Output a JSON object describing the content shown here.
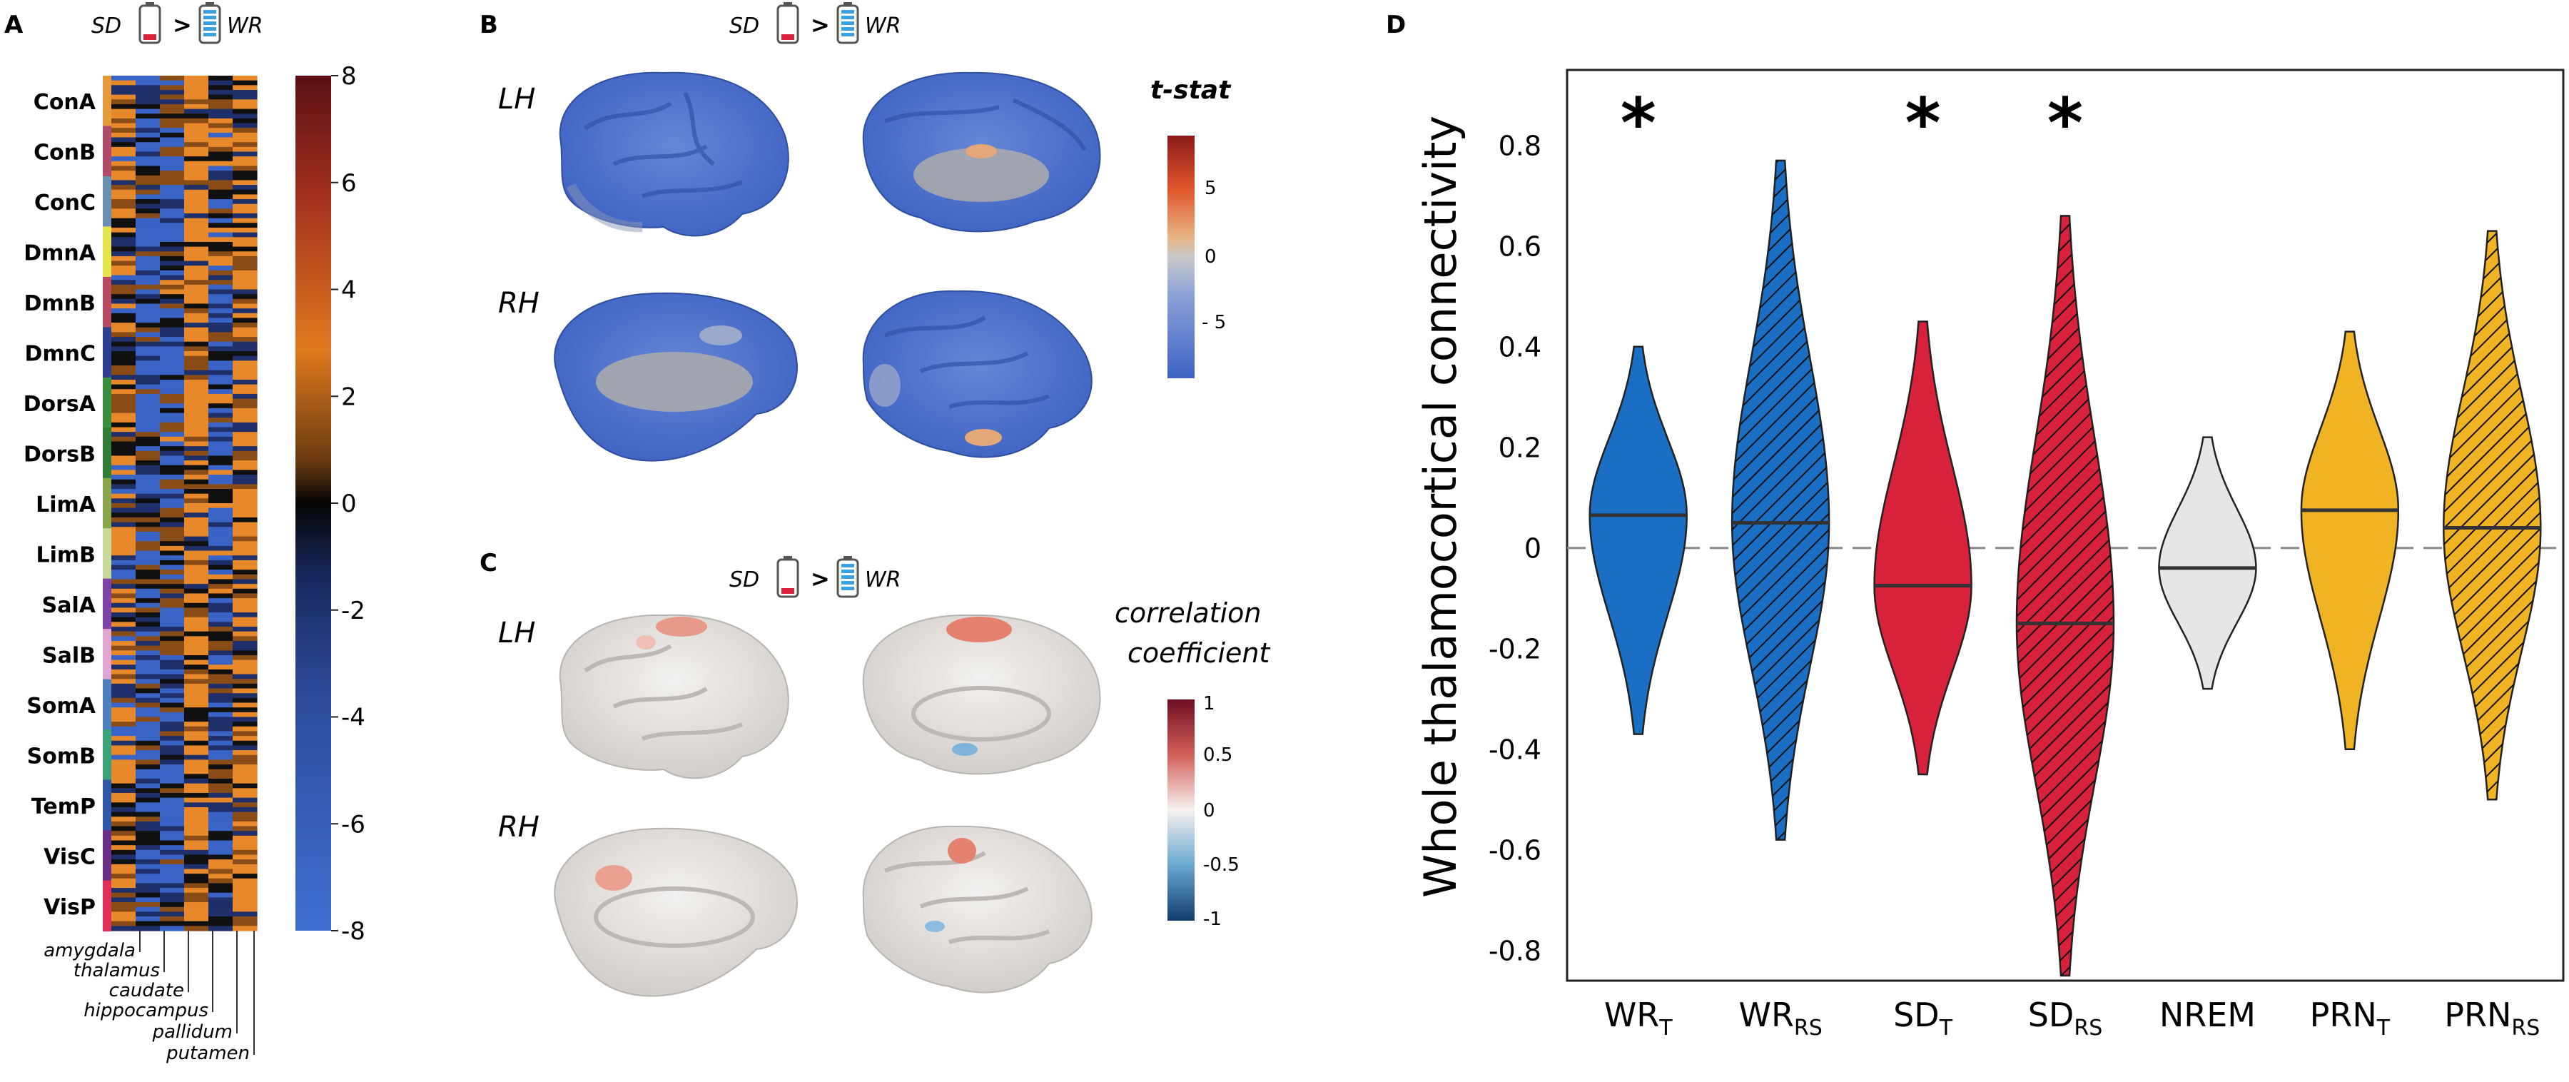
{
  "panels": {
    "a": {
      "letter": "A",
      "contrast": {
        "left": "SD",
        "op": ">",
        "right": "WR"
      },
      "networks": [
        "ConA",
        "ConB",
        "ConC",
        "DmnA",
        "DmnB",
        "DmnC",
        "DorsA",
        "DorsB",
        "LimA",
        "LimB",
        "SalA",
        "SalB",
        "SomA",
        "SomB",
        "TemP",
        "VisC",
        "VisP"
      ],
      "network_colors": [
        "#e59a3c",
        "#b04a6b",
        "#6a8fb1",
        "#e4e64b",
        "#b74b61",
        "#2d3f8f",
        "#3a8f3e",
        "#2f7d37",
        "#8aa64b",
        "#c9d99a",
        "#7d43a8",
        "#e0a5d1",
        "#4d7fbd",
        "#3aa37a",
        "#2f58a6",
        "#6b2e86",
        "#e0305a"
      ],
      "subcortical": [
        "amygdala",
        "thalamus",
        "caudate",
        "hippocampus",
        "pallidum",
        "putamen"
      ],
      "colorbar_ticks": [
        "8",
        "6",
        "4",
        "2",
        "0",
        "-2",
        "-4",
        "-6",
        "-8"
      ]
    },
    "b": {
      "letter": "B",
      "contrast": {
        "left": "SD",
        "op": ">",
        "right": "WR"
      },
      "hemi_labels": [
        "LH",
        "RH"
      ],
      "colorbar_title": "t-stat",
      "colorbar_ticks": [
        "5",
        "0",
        "- 5"
      ]
    },
    "c": {
      "letter": "C",
      "contrast": {
        "left": "SD",
        "op": ">",
        "right": "WR"
      },
      "hemi_labels": [
        "LH",
        "RH"
      ],
      "colorbar_title": [
        "correlation",
        "coefficient"
      ],
      "colorbar_ticks": [
        "1",
        "0.5",
        "0",
        "-0.5",
        "-1"
      ]
    },
    "d": {
      "letter": "D"
    }
  },
  "chart_data": {
    "type": "violin",
    "ylabel": "Whole thalamocortical connectivity",
    "ylim": [
      -0.86,
      0.95
    ],
    "yticks": [
      "0.8",
      "0.6",
      "0.4",
      "0.2",
      "0",
      "-0.2",
      "-0.4",
      "-0.6",
      "-0.8"
    ],
    "reference_line": 0,
    "series": [
      {
        "name": "WR",
        "sub": "T",
        "color": "#1a6fc4",
        "hatched": false,
        "median": 0.065,
        "min": -0.37,
        "max": 0.4,
        "significant": true
      },
      {
        "name": "WR",
        "sub": "RS",
        "color": "#1a6fc4",
        "hatched": true,
        "median": 0.05,
        "min": -0.58,
        "max": 0.77,
        "significant": false
      },
      {
        "name": "SD",
        "sub": "T",
        "color": "#d8213a",
        "hatched": false,
        "median": -0.075,
        "min": -0.45,
        "max": 0.45,
        "significant": true
      },
      {
        "name": "SD",
        "sub": "RS",
        "color": "#d8213a",
        "hatched": true,
        "median": -0.15,
        "min": -0.85,
        "max": 0.66,
        "significant": true
      },
      {
        "name": "NREM",
        "sub": "",
        "color": "#e6e6e6",
        "hatched": false,
        "median": -0.04,
        "min": -0.28,
        "max": 0.22,
        "significant": false
      },
      {
        "name": "PRN",
        "sub": "T",
        "color": "#f0b323",
        "hatched": false,
        "median": 0.075,
        "min": -0.4,
        "max": 0.43,
        "significant": false
      },
      {
        "name": "PRN",
        "sub": "RS",
        "color": "#f0b323",
        "hatched": true,
        "median": 0.04,
        "min": -0.5,
        "max": 0.63,
        "significant": false
      }
    ],
    "significance_marker": "*",
    "grid": false,
    "legend": "none"
  }
}
